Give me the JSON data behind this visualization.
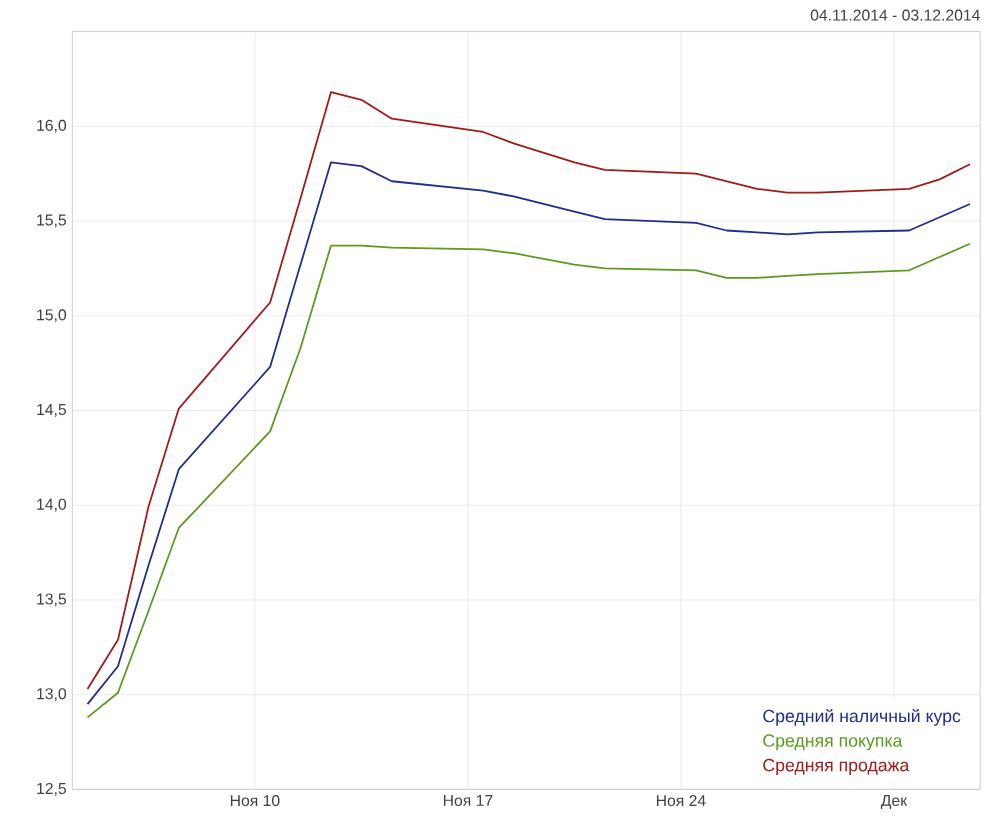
{
  "chart_data": {
    "type": "line",
    "title": "04.11.2014 - 03.12.2014",
    "x": [
      "2014-11-04T12:00",
      "2014-11-05T12:00",
      "2014-11-06T12:00",
      "2014-11-07T12:00",
      "2014-11-10T12:00",
      "2014-11-11T12:00",
      "2014-11-12T12:00",
      "2014-11-13T12:00",
      "2014-11-14T12:00",
      "2014-11-17T12:00",
      "2014-11-18T12:00",
      "2014-11-19T12:00",
      "2014-11-20T12:00",
      "2014-11-21T12:00",
      "2014-11-24T12:00",
      "2014-11-25T12:00",
      "2014-11-26T12:00",
      "2014-11-27T12:00",
      "2014-11-28T12:00",
      "2014-12-01T12:00",
      "2014-12-02T12:00",
      "2014-12-03T12:00"
    ],
    "series": [
      {
        "name": "Средний наличный курс",
        "color": "#1f2d8c",
        "values": [
          12.95,
          13.15,
          13.68,
          14.19,
          14.73,
          15.27,
          15.81,
          15.79,
          15.71,
          15.66,
          15.63,
          15.59,
          15.55,
          15.51,
          15.49,
          15.45,
          15.44,
          15.43,
          15.44,
          15.45,
          15.52,
          15.59
        ]
      },
      {
        "name": "Средняя покупка",
        "color": "#5a9a1e",
        "values": [
          12.88,
          13.01,
          13.44,
          13.88,
          14.39,
          14.83,
          15.37,
          15.37,
          15.36,
          15.35,
          15.33,
          15.3,
          15.27,
          15.25,
          15.24,
          15.2,
          15.2,
          15.21,
          15.22,
          15.24,
          15.31,
          15.38
        ]
      },
      {
        "name": "Средняя продажа",
        "color": "#a11a1a",
        "values": [
          13.03,
          13.29,
          13.99,
          14.51,
          15.07,
          15.62,
          16.18,
          16.14,
          16.04,
          15.97,
          15.91,
          15.86,
          15.81,
          15.77,
          15.75,
          15.71,
          15.67,
          15.65,
          15.65,
          15.67,
          15.72,
          15.8
        ]
      }
    ],
    "xlim": [
      "2014-11-04T00:00",
      "2014-12-03T20:00"
    ],
    "xticks": [
      {
        "value": "2014-11-10",
        "label": "Ноя 10"
      },
      {
        "value": "2014-11-17",
        "label": "Ноя 17"
      },
      {
        "value": "2014-11-24",
        "label": "Ноя 24"
      },
      {
        "value": "2014-12-01",
        "label": "Дек"
      }
    ],
    "ylim": [
      12.5,
      16.5
    ],
    "yticks": [
      {
        "value": 12.5,
        "label": "12,5"
      },
      {
        "value": 13.0,
        "label": "13,0"
      },
      {
        "value": 13.5,
        "label": "13,5"
      },
      {
        "value": 14.0,
        "label": "14,0"
      },
      {
        "value": 14.5,
        "label": "14,5"
      },
      {
        "value": 15.0,
        "label": "15,0"
      },
      {
        "value": 15.5,
        "label": "15,5"
      },
      {
        "value": 16.0,
        "label": "16,0"
      }
    ],
    "grid": true,
    "legend": "bottom right",
    "marker": "none",
    "line_style": "solid"
  }
}
